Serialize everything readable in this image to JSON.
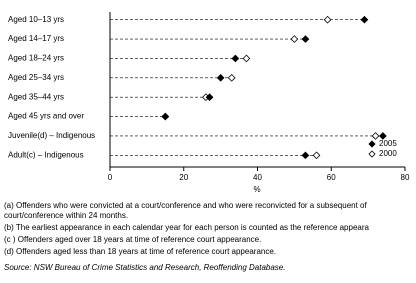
{
  "chart_data": {
    "type": "dot",
    "categories": [
      "Aged 10–13 yrs",
      "Aged 14–17 yrs",
      "Aged 18–24 yrs",
      "Aged 25–34 yrs",
      "Aged 35–44 yrs",
      "Aged 45 yrs and over",
      "Juvenile(d) – Indigenous",
      "Adult(c) – Indigenous"
    ],
    "series": [
      {
        "name": "2005",
        "color": "#000000",
        "values": [
          69,
          53,
          34,
          30,
          27,
          15,
          74,
          53
        ]
      },
      {
        "name": "2000",
        "color": "#ffffff",
        "values": [
          59,
          50,
          37,
          33,
          26,
          15,
          72,
          56
        ]
      }
    ],
    "xlim": [
      0,
      80
    ],
    "xticks": [
      0,
      20,
      40,
      60,
      80
    ],
    "xlabel": "%",
    "legend": "lower right",
    "footnotes": [
      "(a) Offenders who were convicted at a court/conference and who were reconvicted for a subsequent of",
      "court/conference within 24 months.",
      "(b) The earliest appearance in each calendar year for each person is counted as the reference appeara",
      "(c ) Offenders aged over 18 years at time of reference court appearance.",
      "(d) Offenders aged less than 18 years at time of reference court appearance."
    ],
    "source": "Source: NSW Bureau of Crime Statistics and Research, Reoffending Database."
  }
}
